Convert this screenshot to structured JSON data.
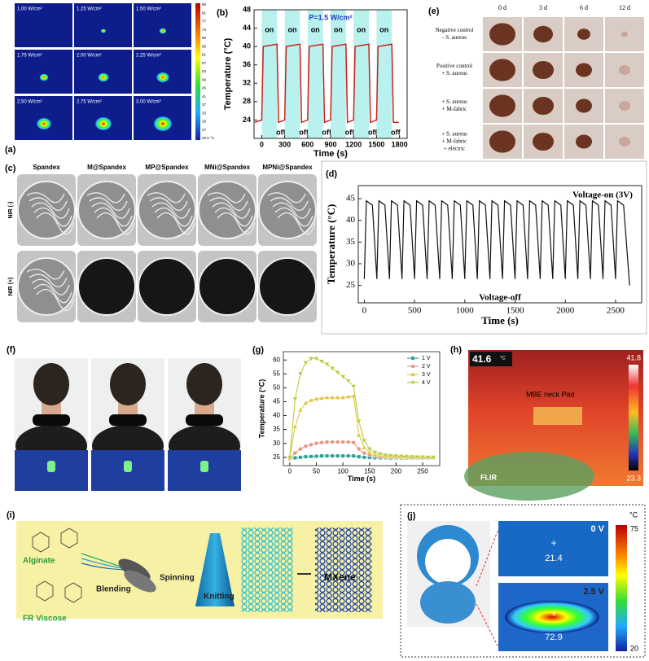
{
  "panel_labels": [
    "(a)",
    "(b)",
    "(c)",
    "(d)",
    "(e)",
    "(f)",
    "(g)",
    "(h)",
    "(i)",
    "(j)"
  ],
  "a": {
    "tiles": [
      "1.00 W/cm²",
      "1.25 W/cm²",
      "1.50 W/cm²",
      "1.75 W/cm²",
      "2.00 W/cm²",
      "2.25 W/cm²",
      "2.50 W/cm²",
      "2.75 W/cm²",
      "3.00 W/cm²"
    ],
    "colorbar": [
      "85",
      "81",
      "77",
      "73",
      "69",
      "65",
      "61",
      "57",
      "53",
      "49",
      "45",
      "41",
      "37",
      "33",
      "29",
      "27",
      "25.0 °C"
    ]
  },
  "c": {
    "columns": [
      "Spandex",
      "M@Spandex",
      "MP@Spandex",
      "MNi@Spandex",
      "MPNi@Spandex"
    ],
    "rows": [
      "NIR (-)",
      "NIR (+)"
    ]
  },
  "e": {
    "columns": [
      "0 d",
      "3 d",
      "6 d",
      "12 d"
    ],
    "rows": [
      [
        "Negative control",
        "- S. aureus"
      ],
      [
        "Positive control",
        "+ S. aureus"
      ],
      [
        "+ S. aureus",
        "+ M-fabric"
      ],
      [
        "+ S. aureus",
        "+ M-fabric",
        "+ electric"
      ]
    ]
  },
  "h": {
    "max_reading": 41.6,
    "unit": "°C",
    "scale_max": 41.8,
    "scale_min": 23.3,
    "label": "MBE neck Pad",
    "brand": "FLIR"
  },
  "i": {
    "labels": [
      "Alginate",
      "FR Viscose",
      "Blending",
      "Spinning",
      "Knitting",
      "MXene"
    ]
  },
  "j": {
    "top_voltage": "0 V",
    "top_reading": 21.4,
    "bottom_voltage": "2.5 V",
    "bottom_reading": 72.9,
    "marker": "+",
    "unit": "°C",
    "scale_max": 75,
    "scale_min": 20
  },
  "chart_data": [
    {
      "type": "line",
      "annotation": "P=1.5 W/cm²",
      "xlabel": "Time (s)",
      "ylabel": "Temperature (°C)",
      "xlim": [
        -100,
        1900
      ],
      "ylim": [
        20,
        48
      ],
      "xticks": [
        0,
        300,
        600,
        900,
        1200,
        1500,
        1800
      ],
      "yticks": [
        24,
        28,
        32,
        36,
        40,
        44,
        48
      ],
      "spans": [
        [
          0,
          200
        ],
        [
          300,
          500
        ],
        [
          600,
          800
        ],
        [
          900,
          1100
        ],
        [
          1200,
          1400
        ],
        [
          1500,
          1700
        ]
      ],
      "span_labels": [
        "on",
        "off"
      ],
      "x": [
        -90,
        0,
        20,
        200,
        220,
        300,
        320,
        500,
        520,
        600,
        620,
        800,
        820,
        900,
        920,
        1100,
        1120,
        1200,
        1220,
        1400,
        1420,
        1500,
        1520,
        1700,
        1720,
        1790
      ],
      "series": [
        {
          "color": "#c8231c",
          "values": [
            23.5,
            24,
            40,
            40.5,
            23.5,
            24,
            40,
            40.5,
            23.5,
            24,
            40,
            40.5,
            23.5,
            24,
            40,
            40.5,
            23.5,
            24,
            40,
            40.5,
            23.5,
            24,
            40,
            40.5,
            23.5,
            23.5
          ]
        }
      ]
    },
    {
      "type": "line",
      "annotations": [
        "Voltage-on (3V)",
        "Voltage-off"
      ],
      "xlabel": "Time (s)",
      "ylabel": "Temperature (°C)",
      "xlim": [
        -60,
        2760
      ],
      "ylim": [
        21,
        48
      ],
      "xticks": [
        0,
        500,
        1000,
        1500,
        2000,
        2500
      ],
      "yticks": [
        25,
        30,
        35,
        40,
        45
      ],
      "x": [
        0,
        20,
        80,
        125,
        145,
        205,
        250,
        270,
        330,
        375,
        395,
        455,
        500,
        520,
        580,
        625,
        645,
        705,
        750,
        770,
        830,
        875,
        895,
        955,
        1000,
        1020,
        1080,
        1125,
        1145,
        1205,
        1250,
        1270,
        1330,
        1375,
        1395,
        1455,
        1500,
        1520,
        1580,
        1625,
        1645,
        1705,
        1750,
        1770,
        1830,
        1875,
        1895,
        1955,
        2000,
        2020,
        2080,
        2125,
        2145,
        2205,
        2250,
        2270,
        2330,
        2375,
        2395,
        2455,
        2500,
        2520,
        2580,
        2640
      ],
      "series": [
        {
          "color": "#111111",
          "values": [
            26.5,
            44.5,
            43.5,
            26.5,
            44.5,
            43.5,
            26.5,
            44.5,
            43.5,
            26.5,
            44.5,
            43.5,
            26.5,
            44.5,
            43.5,
            26.5,
            44.5,
            43.5,
            26.5,
            44.5,
            43.5,
            26.5,
            44.5,
            43.5,
            26.5,
            44.5,
            43.5,
            26.5,
            44.5,
            43.5,
            26.5,
            44.5,
            43.5,
            26.5,
            44.5,
            43.5,
            26.5,
            44.5,
            43.5,
            26.5,
            44.5,
            43.5,
            26.5,
            44.5,
            43.5,
            26.5,
            44.5,
            43.5,
            26.5,
            44.5,
            43.5,
            26.5,
            44.5,
            43.5,
            26.5,
            44.5,
            43.5,
            26.5,
            44.5,
            43.5,
            26.5,
            44.5,
            43.5,
            25
          ]
        }
      ]
    },
    {
      "type": "line",
      "xlabel": "Time (s)",
      "ylabel": "Temperature (°C)",
      "legend": "upper right",
      "xlim": [
        -12,
        282
      ],
      "ylim": [
        22,
        63
      ],
      "xticks": [
        0,
        50,
        100,
        150,
        200,
        250
      ],
      "yticks": [
        25,
        30,
        35,
        40,
        45,
        50,
        55,
        60
      ],
      "x": [
        0,
        10,
        20,
        30,
        40,
        50,
        60,
        70,
        80,
        90,
        100,
        110,
        120,
        130,
        140,
        150,
        160,
        170,
        180,
        190,
        200,
        210,
        220,
        230,
        240,
        250,
        260,
        270
      ],
      "series": [
        {
          "name": "1 V",
          "color": "#2aa198",
          "values": [
            24.5,
            24.8,
            25,
            25.2,
            25.3,
            25.4,
            25.5,
            25.5,
            25.5,
            25.5,
            25.5,
            25.5,
            25.5,
            25.2,
            25,
            24.9,
            24.8,
            24.8,
            24.8,
            24.7,
            24.7,
            24.7,
            24.7,
            24.7,
            24.7,
            24.7,
            24.7,
            24.7
          ]
        },
        {
          "name": "2 V",
          "color": "#e8957a",
          "values": [
            24.5,
            26.5,
            28,
            29,
            29.5,
            30,
            30.3,
            30.5,
            30.5,
            30.5,
            30.5,
            30.5,
            30.3,
            28,
            26.5,
            25.8,
            25.4,
            25.2,
            25,
            25,
            24.9,
            24.9,
            24.9,
            24.8,
            24.8,
            24.8,
            24.8,
            24.8
          ]
        },
        {
          "name": "3 V",
          "color": "#e2c23a",
          "values": [
            25,
            36,
            42,
            44.5,
            45.5,
            46,
            46.3,
            46.5,
            46.5,
            46.5,
            46.5,
            46.8,
            47,
            33,
            28.5,
            26.8,
            26,
            25.6,
            25.4,
            25.3,
            25.2,
            25.1,
            25,
            25,
            25,
            25,
            24.9,
            24.9
          ]
        },
        {
          "name": "4 V",
          "color": "#b6cc3c",
          "values": [
            25,
            46,
            55,
            59,
            60.5,
            60.5,
            59.5,
            58.5,
            57,
            55.5,
            54,
            52.5,
            50.5,
            38,
            31,
            28,
            26.8,
            26.2,
            25.8,
            25.6,
            25.5,
            25.4,
            25.3,
            25.2,
            25.1,
            25.1,
            25,
            25
          ]
        }
      ]
    }
  ]
}
